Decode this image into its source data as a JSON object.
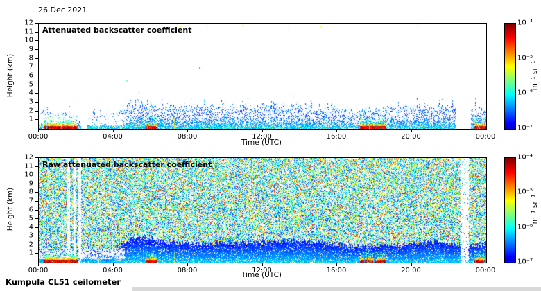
{
  "figure": {
    "date": "26 Dec 2021",
    "footer": "Kumpula CL51 ceilometer"
  },
  "chart_data": [
    {
      "type": "heatmap",
      "title": "Attenuated backscatter coefficient",
      "xlabel": "Time (UTC)",
      "ylabel": "Height (km)",
      "x_tick_labels": [
        "00:00",
        "04:00",
        "08:00",
        "12:00",
        "16:00",
        "20:00",
        "00:00"
      ],
      "x_tick_hours": [
        0,
        4,
        8,
        12,
        16,
        20,
        24
      ],
      "y_ticks_km": [
        1,
        2,
        3,
        4,
        5,
        6,
        7,
        8,
        9,
        10,
        11,
        12
      ],
      "xlim_hours": [
        0,
        24
      ],
      "ylim_km": [
        0,
        12
      ],
      "grid": false,
      "colorbar": {
        "unit_label": "m⁻¹ sr⁻¹",
        "tick_labels": [
          "10⁻⁴",
          "10⁻⁵",
          "10⁻⁶",
          "10⁻⁷"
        ],
        "scale": "log",
        "value_range": [
          "1e-7",
          "1e-4"
        ],
        "colormap": "jet"
      },
      "features": {
        "description": "Boundary-layer aerosol backscatter (blue speckle) below ~2-3 km, white (no signal) above; strong near-surface precipitation echoes (red/orange/yellow/green) during events; white vertical bands are data gaps.",
        "boundary_layer_top_km": [
          [
            0,
            1.7
          ],
          [
            2,
            1.55
          ],
          [
            4,
            1.5
          ],
          [
            4.8,
            2.6
          ],
          [
            5.5,
            3.0
          ],
          [
            6.5,
            2.5
          ],
          [
            8,
            2.2
          ],
          [
            10,
            2.4
          ],
          [
            12,
            2.35
          ],
          [
            14,
            2.6
          ],
          [
            16,
            2.1
          ],
          [
            17,
            1.8
          ],
          [
            19,
            2.1
          ],
          [
            21,
            2.4
          ],
          [
            22,
            2.2
          ],
          [
            23.3,
            1.9
          ],
          [
            24,
            2.3
          ]
        ],
        "surface_precip_events_hours": [
          [
            0.25,
            2.1
          ],
          [
            5.75,
            6.3
          ],
          [
            17.2,
            18.6
          ],
          [
            23.35,
            24
          ]
        ],
        "data_gaps_hours": [
          [
            2.25,
            2.6
          ],
          [
            22.35,
            23.15
          ]
        ],
        "faint_gap_stripes_hours": [
          [
            1.5,
            1.62
          ],
          [
            1.85,
            1.95
          ],
          [
            3.15,
            3.22
          ]
        ],
        "thin_line_hour": 7.25,
        "isolated_returns": [
          {
            "hour": 4.7,
            "km": 5.5,
            "v": 0.45
          },
          {
            "hour": 8.6,
            "km": 7.0,
            "v": 0.78
          },
          {
            "hour": 7.6,
            "km": 11.8,
            "v": 0.6
          },
          {
            "hour": 9.0,
            "km": 11.8,
            "v": 0.55
          },
          {
            "hour": 10.9,
            "km": 11.85,
            "v": 0.65
          },
          {
            "hour": 13.4,
            "km": 11.8,
            "v": 0.65
          },
          {
            "hour": 15.1,
            "km": 11.75,
            "v": 0.6
          },
          {
            "hour": 20.3,
            "km": 11.8,
            "v": 0.5
          }
        ]
      }
    },
    {
      "type": "heatmap",
      "title": "Raw attenuated backscatter coefficient",
      "xlabel": "Time (UTC)",
      "ylabel": "Height (km)",
      "x_tick_labels": [
        "00:00",
        "04:00",
        "08:00",
        "12:00",
        "16:00",
        "20:00",
        "00:00"
      ],
      "x_tick_hours": [
        0,
        4,
        8,
        12,
        16,
        20,
        24
      ],
      "y_ticks_km": [
        1,
        2,
        3,
        4,
        5,
        6,
        7,
        8,
        9,
        10,
        11,
        12
      ],
      "xlim_hours": [
        0,
        24
      ],
      "ylim_km": [
        0,
        12
      ],
      "grid": false,
      "colorbar": {
        "unit_label": "m⁻¹ sr⁻¹",
        "tick_labels": [
          "10⁻⁴",
          "10⁻⁵",
          "10⁻⁶",
          "10⁻⁷"
        ],
        "scale": "log",
        "value_range": [
          "1e-7",
          "1e-4"
        ],
        "colormap": "jet"
      },
      "features": {
        "description": "Same scene without noise filtering: full-height multicolour speckle noise (blue/green/yellow, few orange) superimposed on the boundary-layer and precipitation signals; light vertical stripes are gaps.",
        "gap_stripes_hours": [
          [
            1.5,
            1.64
          ],
          [
            1.85,
            1.97
          ],
          [
            2.12,
            2.24
          ],
          [
            22.6,
            23.05
          ]
        ],
        "surface_precip_events_hours": [
          [
            0.25,
            2.1
          ],
          [
            5.75,
            6.3
          ],
          [
            17.2,
            18.6
          ],
          [
            23.35,
            24
          ]
        ],
        "thin_line_hour": 7.25
      }
    }
  ]
}
